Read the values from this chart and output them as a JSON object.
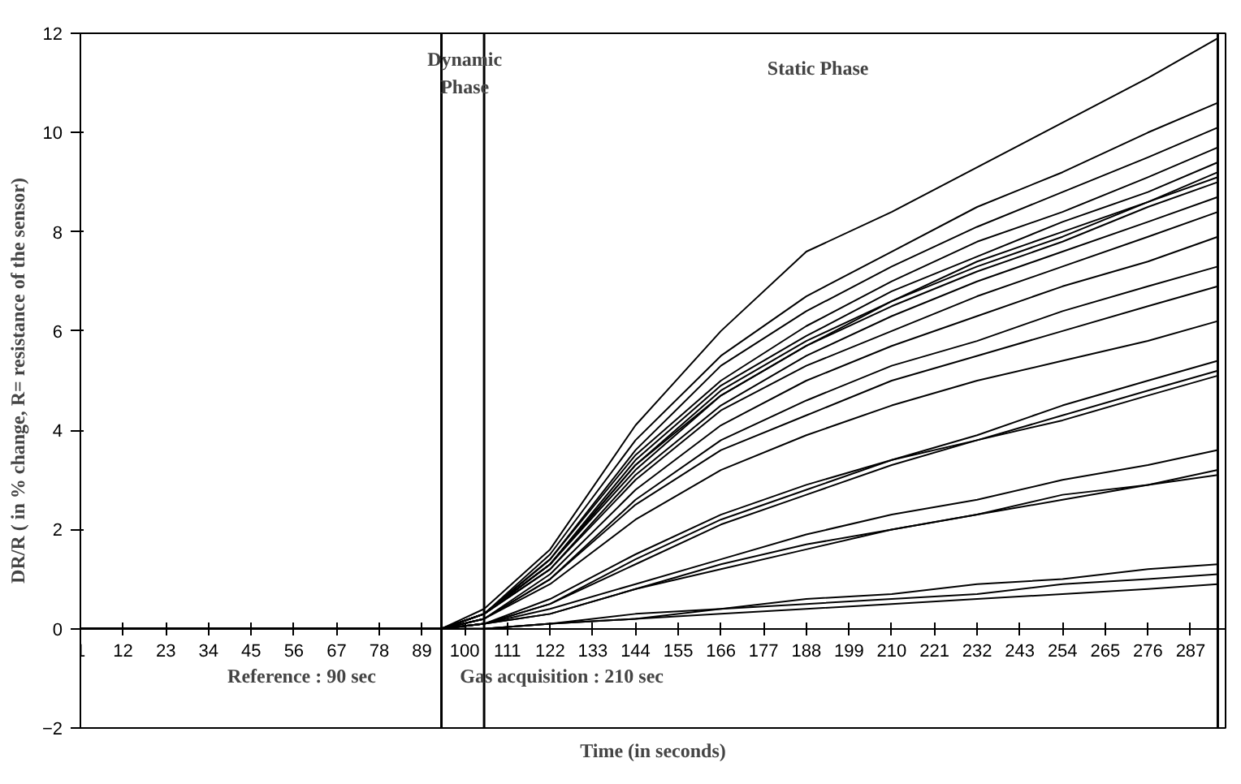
{
  "chart_data": {
    "type": "line",
    "xlabel": "Time (in seconds)",
    "ylabel": "DR/R ( in % change, R= resistance of the sensor)",
    "x": [
      1,
      94,
      105,
      122,
      144,
      166,
      188,
      210,
      232,
      254,
      276,
      294
    ],
    "xlim": [
      1,
      296
    ],
    "ylim": [
      -2,
      12
    ],
    "xticks": [
      1,
      12,
      23,
      34,
      45,
      56,
      67,
      78,
      89,
      100,
      111,
      122,
      133,
      144,
      155,
      166,
      177,
      188,
      199,
      210,
      221,
      232,
      243,
      254,
      265,
      276,
      287
    ],
    "yticks": [
      -2,
      0,
      2,
      4,
      6,
      8,
      10,
      12
    ],
    "grid": false,
    "line_style": "solid",
    "series": [
      {
        "color": "#000000",
        "values": [
          0,
          0,
          0.4,
          1.6,
          4.1,
          6.0,
          7.6,
          8.4,
          9.3,
          10.2,
          11.1,
          11.9
        ]
      },
      {
        "color": "#000000",
        "values": [
          0,
          0,
          0.3,
          1.5,
          3.8,
          5.5,
          6.7,
          7.6,
          8.5,
          9.2,
          10.0,
          10.6
        ]
      },
      {
        "color": "#000000",
        "values": [
          0,
          0,
          0.3,
          1.4,
          3.6,
          5.3,
          6.4,
          7.3,
          8.1,
          8.8,
          9.5,
          10.1
        ]
      },
      {
        "color": "#000000",
        "values": [
          0,
          0,
          0.3,
          1.4,
          3.5,
          5.0,
          6.1,
          7.0,
          7.8,
          8.4,
          9.1,
          9.7
        ]
      },
      {
        "color": "#000000",
        "values": [
          0,
          0,
          0.3,
          1.3,
          3.4,
          4.9,
          5.9,
          6.8,
          7.5,
          8.2,
          8.8,
          9.4
        ]
      },
      {
        "color": "#000000",
        "values": [
          0,
          0,
          0.3,
          1.3,
          3.3,
          4.8,
          5.8,
          6.6,
          7.4,
          8.0,
          8.6,
          9.2
        ]
      },
      {
        "color": "#000000",
        "values": [
          0,
          0,
          0.3,
          1.3,
          3.3,
          4.7,
          5.7,
          6.6,
          7.3,
          7.9,
          8.6,
          9.1
        ]
      },
      {
        "color": "#000000",
        "values": [
          0,
          0,
          0.3,
          1.3,
          3.2,
          4.7,
          5.7,
          6.5,
          7.2,
          7.8,
          8.5,
          9.0
        ]
      },
      {
        "color": "#000000",
        "values": [
          0,
          0,
          0.3,
          1.2,
          3.1,
          4.5,
          5.5,
          6.3,
          7.0,
          7.6,
          8.2,
          8.7
        ]
      },
      {
        "color": "#000000",
        "values": [
          0,
          0,
          0.3,
          1.2,
          3.0,
          4.4,
          5.3,
          6.0,
          6.7,
          7.3,
          7.9,
          8.4
        ]
      },
      {
        "color": "#000000",
        "values": [
          0,
          0,
          0.2,
          1.1,
          2.8,
          4.1,
          5.0,
          5.7,
          6.3,
          6.9,
          7.4,
          7.9
        ]
      },
      {
        "color": "#000000",
        "values": [
          0,
          0,
          0.2,
          1.0,
          2.6,
          3.8,
          4.6,
          5.3,
          5.8,
          6.4,
          6.9,
          7.3
        ]
      },
      {
        "color": "#000000",
        "values": [
          0,
          0,
          0.2,
          1.0,
          2.5,
          3.6,
          4.3,
          5.0,
          5.5,
          6.0,
          6.5,
          6.9
        ]
      },
      {
        "color": "#000000",
        "values": [
          0,
          0,
          0.2,
          0.9,
          2.2,
          3.2,
          3.9,
          4.5,
          5.0,
          5.4,
          5.8,
          6.2
        ]
      },
      {
        "color": "#000000",
        "values": [
          0,
          0,
          0.1,
          0.5,
          1.4,
          2.2,
          2.8,
          3.4,
          3.9,
          4.5,
          5.0,
          5.4
        ]
      },
      {
        "color": "#000000",
        "values": [
          0,
          0,
          0.1,
          0.5,
          1.3,
          2.1,
          2.7,
          3.3,
          3.8,
          4.3,
          4.8,
          5.2
        ]
      },
      {
        "color": "#000000",
        "values": [
          0,
          0,
          0.1,
          0.6,
          1.5,
          2.3,
          2.9,
          3.4,
          3.8,
          4.2,
          4.7,
          5.1
        ]
      },
      {
        "color": "#000000",
        "values": [
          0,
          0,
          0.1,
          0.4,
          0.9,
          1.4,
          1.9,
          2.3,
          2.6,
          3.0,
          3.3,
          3.6
        ]
      },
      {
        "color": "#000000",
        "values": [
          0,
          0,
          0.1,
          0.3,
          0.8,
          1.3,
          1.7,
          2.0,
          2.3,
          2.7,
          2.9,
          3.2
        ]
      },
      {
        "color": "#000000",
        "values": [
          0,
          0,
          0.1,
          0.3,
          0.8,
          1.2,
          1.6,
          2.0,
          2.3,
          2.6,
          2.9,
          3.1
        ]
      },
      {
        "color": "#000000",
        "values": [
          0,
          0,
          0.0,
          0.1,
          0.3,
          0.4,
          0.6,
          0.7,
          0.9,
          1.0,
          1.2,
          1.3
        ]
      },
      {
        "color": "#000000",
        "values": [
          0,
          0,
          0.0,
          0.1,
          0.2,
          0.4,
          0.5,
          0.6,
          0.7,
          0.9,
          1.0,
          1.1
        ]
      },
      {
        "color": "#000000",
        "values": [
          0,
          0,
          0.0,
          0.1,
          0.2,
          0.3,
          0.4,
          0.5,
          0.6,
          0.7,
          0.8,
          0.9
        ]
      }
    ],
    "ref_lines": [
      {
        "axis": "x",
        "value": 94
      },
      {
        "axis": "x",
        "value": 105
      },
      {
        "axis": "x",
        "value": 294
      }
    ],
    "annotations": [
      "Dynamic\nPhase",
      "Static Phase",
      "Reference : 90 sec",
      "Gas acquisition : 210 sec"
    ]
  }
}
